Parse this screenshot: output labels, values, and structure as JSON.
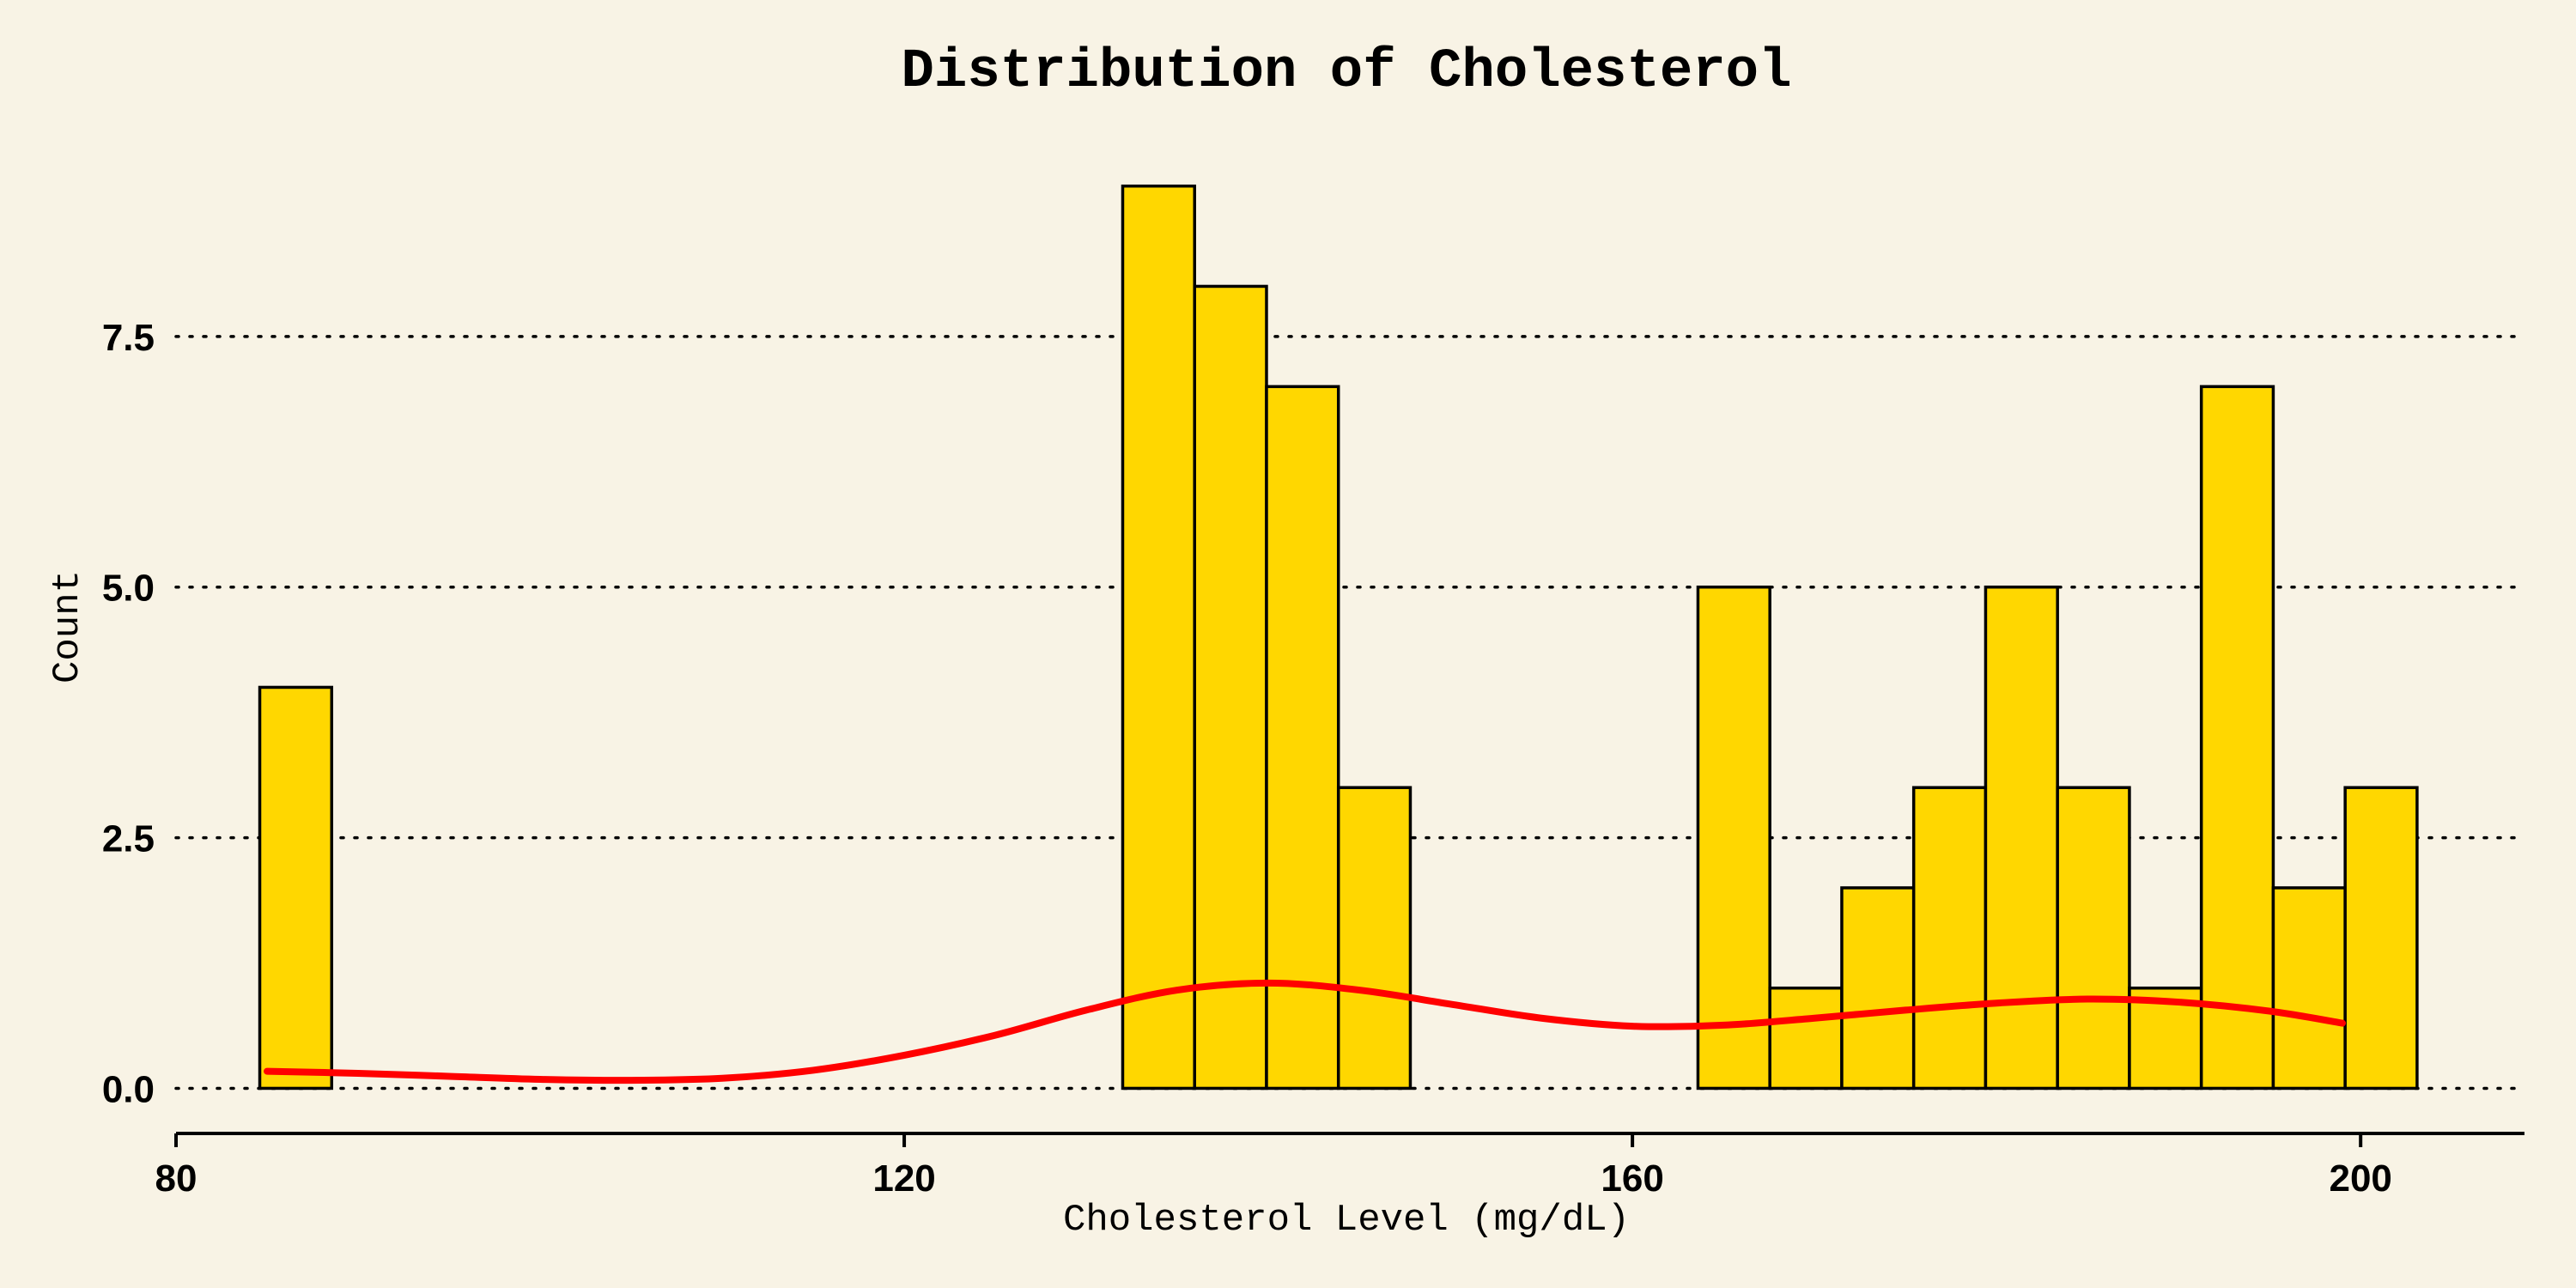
{
  "chart_data": {
    "type": "bar",
    "title": "Distribution of Cholesterol",
    "xlabel": "Cholesterol Level (mg/dL)",
    "ylabel": "Count",
    "xlim": [
      80,
      209
    ],
    "ylim": [
      -0.45,
      9.4
    ],
    "xticks": [
      80,
      120,
      160,
      200
    ],
    "xtick_labels": [
      "80",
      "120",
      "160",
      "200"
    ],
    "yticks": [
      0,
      2.5,
      5,
      7.5
    ],
    "ytick_labels": [
      "0.0",
      "2.5",
      "5.0",
      "7.5"
    ],
    "grid": "horizontal dotted",
    "bin_width": 3.95,
    "bins": [
      {
        "start": 84.6,
        "count": 4
      },
      {
        "start": 132.0,
        "count": 9
      },
      {
        "start": 135.95,
        "count": 8
      },
      {
        "start": 139.9,
        "count": 7
      },
      {
        "start": 143.85,
        "count": 3
      },
      {
        "start": 163.6,
        "count": 5
      },
      {
        "start": 167.55,
        "count": 1
      },
      {
        "start": 171.5,
        "count": 2
      },
      {
        "start": 175.45,
        "count": 3
      },
      {
        "start": 179.4,
        "count": 5
      },
      {
        "start": 183.35,
        "count": 3
      },
      {
        "start": 187.3,
        "count": 1
      },
      {
        "start": 191.25,
        "count": 7
      },
      {
        "start": 195.2,
        "count": 2
      },
      {
        "start": 199.15,
        "count": 3
      }
    ],
    "kde": {
      "x": [
        85,
        90,
        95,
        100,
        105,
        110,
        115,
        120,
        125,
        130,
        135,
        140,
        145,
        150,
        155,
        160,
        165,
        170,
        175,
        180,
        185,
        190,
        195,
        199
      ],
      "y": [
        0.17,
        0.15,
        0.12,
        0.09,
        0.08,
        0.1,
        0.18,
        0.33,
        0.53,
        0.78,
        0.98,
        1.05,
        0.98,
        0.84,
        0.7,
        0.62,
        0.63,
        0.7,
        0.78,
        0.85,
        0.89,
        0.86,
        0.77,
        0.65
      ]
    },
    "colors": {
      "bar_fill": "#ffd700",
      "bar_edge": "#000000",
      "kde_line": "#ff0000",
      "background": "#f8f3e5"
    }
  }
}
